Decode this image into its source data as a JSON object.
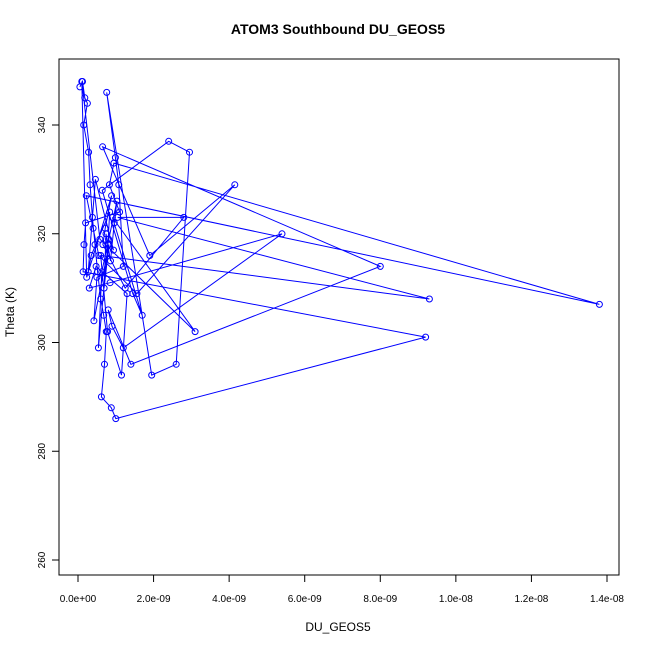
{
  "chart_data": {
    "type": "line",
    "title": "ATOM3 Southbound DU_GEOS5",
    "xlabel": "DU_GEOS5",
    "ylabel": "Theta (K)",
    "xlim": [
      0,
      1.4e-08
    ],
    "ylim": [
      260,
      350
    ],
    "grid": false,
    "legend": "none",
    "x_tick_labels": [
      "0.0e+00",
      "2.0e-09",
      "4.0e-09",
      "6.0e-09",
      "8.0e-09",
      "1.0e-08",
      "1.2e-08",
      "1.4e-08"
    ],
    "x_tick_values": [
      0,
      2e-09,
      4e-09,
      6e-09,
      8e-09,
      1e-08,
      1.2e-08,
      1.4e-08
    ],
    "y_tick_labels": [
      "260",
      "280",
      "300",
      "320",
      "340"
    ],
    "y_tick_values": [
      260,
      280,
      300,
      320,
      340
    ],
    "series_color": "#0000ff",
    "series": [
      {
        "x": [
          5e-11,
          1.2e-10,
          1.8e-10,
          2.5e-10,
          1.5e-10,
          2.8e-10,
          3.2e-10,
          3.8e-10,
          4.5e-10,
          5.2e-10,
          6e-10,
          6.8e-10,
          7.5e-10,
          7e-10,
          6.2e-10,
          8.8e-10,
          1e-09,
          9.2e-09,
          1.35e-10,
          1.6e-10,
          2e-10,
          1.1e-09,
          8.3e-10,
          9.5e-10,
          1.38e-08,
          2.2e-10,
          4e-10,
          5.5e-10,
          1.56e-09,
          4.15e-09,
          1.9e-09,
          6.5e-10,
          8e-09,
          1.4e-09,
          8e-10,
          9e-10,
          1.2e-09,
          5.4e-09,
          8.5e-10,
          3e-10,
          4.8e-10,
          1.3e-09,
          1.15e-09,
          7.8e-10,
          6e-10,
          9.3e-09,
          1.05e-09,
          2.8e-09,
          1.25e-09,
          6.6e-10,
          7.2e-10,
          8.9e-10,
          2.3e-10,
          1e-10,
          5.8e-10,
          3.1e-09,
          9.1e-10,
          1.7e-09,
          1.45e-09,
          6.4e-10,
          2.4e-09,
          2.95e-09,
          2.6e-09,
          1.95e-09,
          7.6e-10,
          9.9e-10,
          1.08e-09,
          1.2e-09,
          5e-10,
          4.2e-10,
          8.2e-10,
          6.9e-10,
          7.4e-10,
          8.6e-10,
          9.6e-10,
          1.03e-09,
          6.3e-10,
          5.4e-10,
          7.9e-10,
          8.4e-10,
          3.5e-10,
          2.7e-10,
          4.6e-10,
          9.4e-10,
          8.1e-10
        ],
        "y": [
          347,
          348,
          345,
          344,
          340,
          335,
          329,
          323,
          318,
          313,
          308,
          305,
          302,
          296,
          290,
          288,
          286,
          301,
          313,
          318,
          322,
          324,
          329,
          333,
          307,
          327,
          321,
          316,
          309,
          329,
          316,
          336,
          314,
          296,
          306,
          303,
          299,
          320,
          311,
          310,
          314,
          309,
          294,
          302,
          316,
          308,
          323,
          323,
          310,
          318,
          321,
          327,
          312,
          348,
          319,
          302,
          323,
          305,
          309,
          328,
          337,
          335,
          296,
          294,
          346,
          334,
          329,
          314,
          312,
          304,
          318,
          310,
          320,
          315,
          322,
          326,
          313,
          299,
          318,
          324,
          316,
          313,
          330,
          317,
          319
        ]
      }
    ]
  }
}
